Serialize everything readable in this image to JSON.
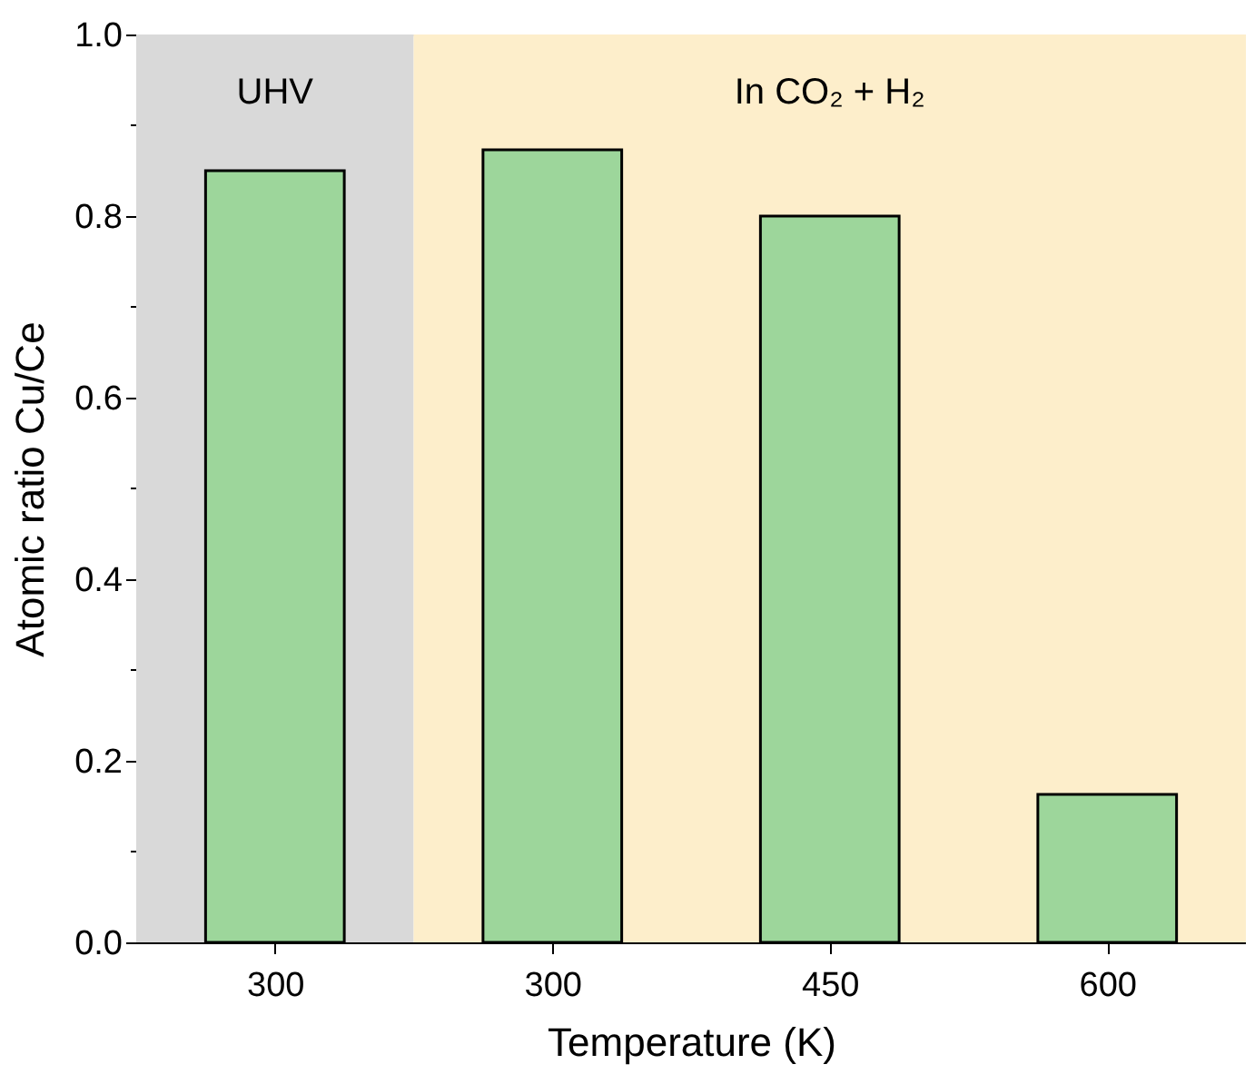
{
  "chart_data": {
    "type": "bar",
    "xlabel": "Temperature (K)",
    "ylabel": "Atomic ratio Cu/Ce",
    "categories": [
      "300",
      "300",
      "450",
      "600"
    ],
    "values": [
      0.85,
      0.873,
      0.8,
      0.163
    ],
    "color": "#9dd69b",
    "ylim": [
      0,
      1.0
    ],
    "yticks": [
      {
        "value": 0,
        "label": "0.0"
      },
      {
        "value": 0.1,
        "label": null
      },
      {
        "value": 0.2,
        "label": "0.2"
      },
      {
        "value": 0.3,
        "label": null
      },
      {
        "value": 0.4,
        "label": "0.4"
      },
      {
        "value": 0.5,
        "label": null
      },
      {
        "value": 0.6,
        "label": "0.6"
      },
      {
        "value": 0.7,
        "label": null
      },
      {
        "value": 0.8,
        "label": "0.8"
      },
      {
        "value": 0.9,
        "label": null
      },
      {
        "value": 1.0,
        "label": "1.0"
      }
    ],
    "bands": [
      {
        "axis": "x",
        "from": "300",
        "to": "300",
        "label": "UHV",
        "color": "#d9d9d9"
      },
      {
        "axis": "x",
        "from": "300",
        "to": "600",
        "label": "In CO₂ + H₂",
        "color": "#fdeecb"
      }
    ],
    "grid": false
  }
}
